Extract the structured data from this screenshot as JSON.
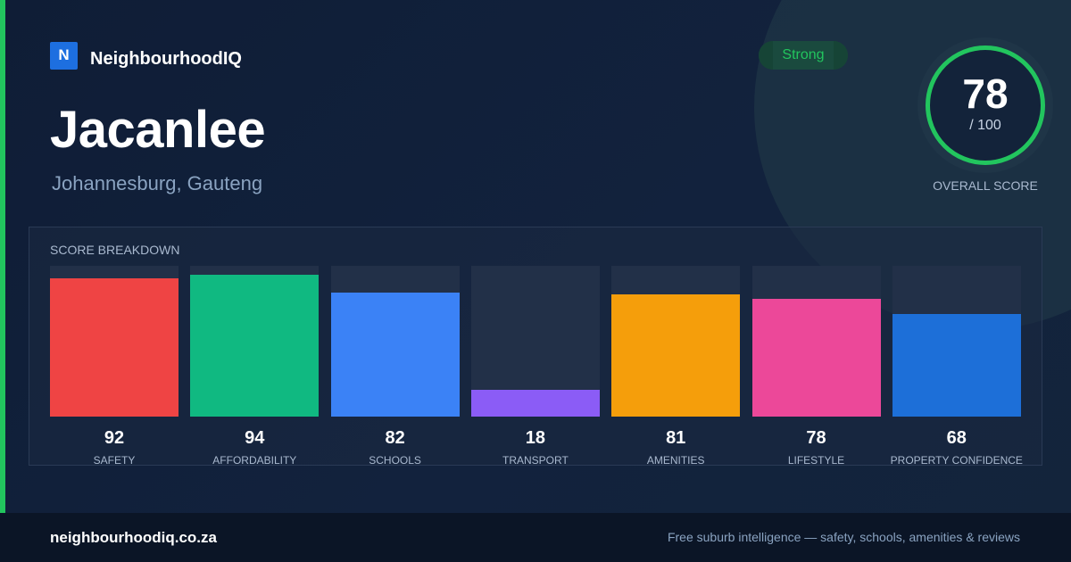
{
  "brand": {
    "logo_letter": "N",
    "name": "NeighbourhoodIQ"
  },
  "suburb": {
    "name": "Jacanlee",
    "location": "Johannesburg, Gauteng"
  },
  "rating": {
    "badge": "Strong",
    "badge_color": "#22c55e"
  },
  "overall": {
    "score": "78",
    "max": "/ 100",
    "label": "OVERALL SCORE",
    "ring_color": "#22c55e",
    "fraction": 0.78
  },
  "breakdown": {
    "title": "SCORE BREAKDOWN",
    "items": [
      {
        "label": "SAFETY",
        "value": 92,
        "color": "#ef4444"
      },
      {
        "label": "AFFORDABILITY",
        "value": 94,
        "color": "#10b981"
      },
      {
        "label": "SCHOOLS",
        "value": 82,
        "color": "#3b82f6"
      },
      {
        "label": "TRANSPORT",
        "value": 18,
        "color": "#8b5cf6"
      },
      {
        "label": "AMENITIES",
        "value": 81,
        "color": "#f59e0b"
      },
      {
        "label": "LIFESTYLE",
        "value": 78,
        "color": "#ec4899"
      },
      {
        "label": "PROPERTY CONFIDENCE",
        "value": 68,
        "color": "#1d6fd8"
      }
    ]
  },
  "footer": {
    "domain": "neighbourhoodiq.co.za",
    "tagline": "Free suburb intelligence — safety, schools, amenities & reviews"
  },
  "accent_color": "#22c55e"
}
